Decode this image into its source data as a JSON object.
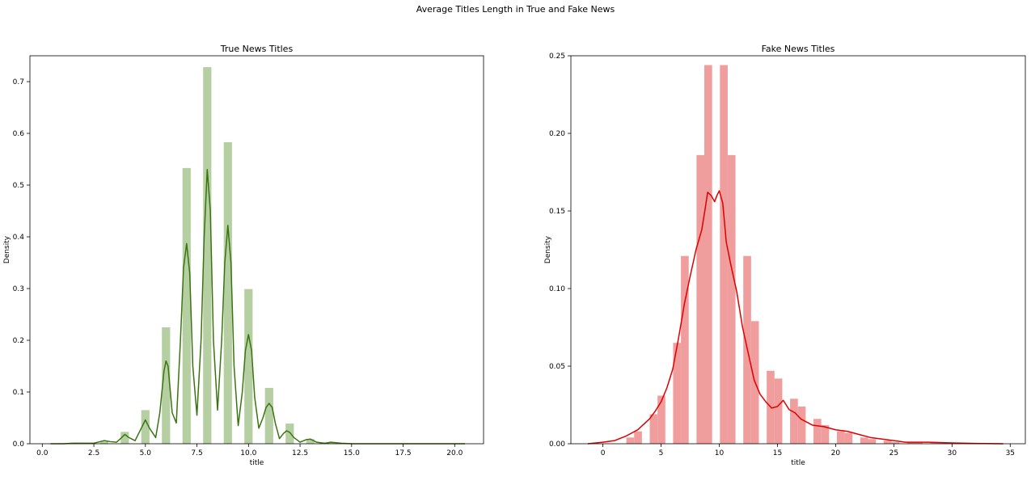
{
  "figure": {
    "suptitle": "Average Titles Length in True and Fake News"
  },
  "chart_data": [
    {
      "type": "bar",
      "title": "True News Titles",
      "xlabel": "title",
      "ylabel": "Density",
      "xlim": [
        -0.6,
        21.4
      ],
      "ylim": [
        0,
        0.75
      ],
      "xticks": [
        0.0,
        2.5,
        5.0,
        7.5,
        10.0,
        12.5,
        15.0,
        17.5,
        20.0
      ],
      "xtick_labels": [
        "0.0",
        "2.5",
        "5.0",
        "7.5",
        "10.0",
        "12.5",
        "15.0",
        "17.5",
        "20.0"
      ],
      "yticks": [
        0.0,
        0.1,
        0.2,
        0.3,
        0.4,
        0.5,
        0.6,
        0.7
      ],
      "ytick_labels": [
        "0.0",
        "0.1",
        "0.2",
        "0.3",
        "0.4",
        "0.5",
        "0.6",
        "0.7"
      ],
      "bar_color": "#b5cfa3",
      "kde_color": "#3a7410",
      "bars": [
        {
          "x": 3,
          "width": 0.4,
          "density": 0.004
        },
        {
          "x": 4,
          "width": 0.4,
          "density": 0.023
        },
        {
          "x": 5,
          "width": 0.4,
          "density": 0.065
        },
        {
          "x": 6,
          "width": 0.4,
          "density": 0.225
        },
        {
          "x": 7,
          "width": 0.4,
          "density": 0.533
        },
        {
          "x": 8,
          "width": 0.4,
          "density": 0.728
        },
        {
          "x": 9,
          "width": 0.4,
          "density": 0.583
        },
        {
          "x": 10,
          "width": 0.4,
          "density": 0.299
        },
        {
          "x": 11,
          "width": 0.4,
          "density": 0.108
        },
        {
          "x": 12,
          "width": 0.4,
          "density": 0.039
        },
        {
          "x": 13,
          "width": 0.4,
          "density": 0.009
        },
        {
          "x": 14,
          "width": 0.4,
          "density": 0.002
        }
      ],
      "kde": {
        "x": [
          0.4,
          1.0,
          1.5,
          2.0,
          2.5,
          2.8,
          3.0,
          3.3,
          3.6,
          3.8,
          4.0,
          4.2,
          4.5,
          4.8,
          5.0,
          5.2,
          5.5,
          5.7,
          5.9,
          6.0,
          6.1,
          6.3,
          6.5,
          6.7,
          6.85,
          7.0,
          7.15,
          7.3,
          7.5,
          7.7,
          7.85,
          8.0,
          8.15,
          8.3,
          8.5,
          8.7,
          8.85,
          9.0,
          9.15,
          9.3,
          9.5,
          9.7,
          9.85,
          10.0,
          10.15,
          10.3,
          10.5,
          10.7,
          10.85,
          11.0,
          11.15,
          11.3,
          11.5,
          11.7,
          11.85,
          12.0,
          12.2,
          12.5,
          12.8,
          13.0,
          13.3,
          13.7,
          14.0,
          14.5,
          15.0,
          16.0,
          18.0,
          20.5
        ],
        "y": [
          0.0,
          0.0,
          0.001,
          0.001,
          0.001,
          0.004,
          0.006,
          0.004,
          0.003,
          0.01,
          0.018,
          0.012,
          0.006,
          0.03,
          0.046,
          0.03,
          0.012,
          0.06,
          0.14,
          0.16,
          0.15,
          0.06,
          0.04,
          0.2,
          0.34,
          0.387,
          0.33,
          0.15,
          0.055,
          0.2,
          0.4,
          0.53,
          0.45,
          0.2,
          0.065,
          0.2,
          0.35,
          0.422,
          0.35,
          0.15,
          0.035,
          0.1,
          0.18,
          0.211,
          0.18,
          0.09,
          0.03,
          0.05,
          0.07,
          0.078,
          0.07,
          0.04,
          0.01,
          0.02,
          0.025,
          0.022,
          0.012,
          0.003,
          0.008,
          0.009,
          0.003,
          0.001,
          0.003,
          0.001,
          0.0,
          0.0,
          0.0,
          0.0
        ]
      }
    },
    {
      "type": "bar",
      "title": "Fake News Titles",
      "xlabel": "title",
      "ylabel": "Density",
      "xlim": [
        -2.75,
        36.3
      ],
      "ylim": [
        0,
        0.25
      ],
      "xticks": [
        0,
        5,
        10,
        15,
        20,
        25,
        30,
        35
      ],
      "xtick_labels": [
        "0",
        "5",
        "10",
        "15",
        "20",
        "25",
        "30",
        "35"
      ],
      "yticks": [
        0.0,
        0.05,
        0.1,
        0.15,
        0.2,
        0.25
      ],
      "ytick_labels": [
        "0.00",
        "0.05",
        "0.10",
        "0.15",
        "0.20",
        "0.25"
      ],
      "bar_color": "#f09d9d",
      "kde_color": "#e00000",
      "bars": [
        {
          "x": 2.35,
          "width": 0.67,
          "density": 0.004
        },
        {
          "x": 3.02,
          "width": 0.67,
          "density": 0.008
        },
        {
          "x": 4.36,
          "width": 0.67,
          "density": 0.019
        },
        {
          "x": 5.03,
          "width": 0.67,
          "density": 0.031
        },
        {
          "x": 6.37,
          "width": 0.67,
          "density": 0.065
        },
        {
          "x": 7.04,
          "width": 0.67,
          "density": 0.121
        },
        {
          "x": 8.38,
          "width": 0.67,
          "density": 0.186
        },
        {
          "x": 9.05,
          "width": 0.67,
          "density": 0.244
        },
        {
          "x": 10.39,
          "width": 0.67,
          "density": 0.244
        },
        {
          "x": 11.06,
          "width": 0.67,
          "density": 0.186
        },
        {
          "x": 12.4,
          "width": 0.67,
          "density": 0.121
        },
        {
          "x": 13.07,
          "width": 0.67,
          "density": 0.079
        },
        {
          "x": 14.41,
          "width": 0.67,
          "density": 0.047
        },
        {
          "x": 15.08,
          "width": 0.67,
          "density": 0.042
        },
        {
          "x": 16.42,
          "width": 0.67,
          "density": 0.029
        },
        {
          "x": 17.09,
          "width": 0.67,
          "density": 0.024
        },
        {
          "x": 18.43,
          "width": 0.67,
          "density": 0.016
        },
        {
          "x": 19.1,
          "width": 0.67,
          "density": 0.012
        },
        {
          "x": 20.44,
          "width": 0.67,
          "density": 0.008
        },
        {
          "x": 21.11,
          "width": 0.67,
          "density": 0.007
        },
        {
          "x": 22.45,
          "width": 0.67,
          "density": 0.004
        },
        {
          "x": 23.12,
          "width": 0.67,
          "density": 0.003
        },
        {
          "x": 24.46,
          "width": 0.67,
          "density": 0.002
        },
        {
          "x": 25.13,
          "width": 0.67,
          "density": 0.001
        },
        {
          "x": 26.47,
          "width": 0.67,
          "density": 0.001
        },
        {
          "x": 27.14,
          "width": 0.67,
          "density": 0.001
        },
        {
          "x": 28.48,
          "width": 0.67,
          "density": 0.0005
        },
        {
          "x": 29.15,
          "width": 0.67,
          "density": 0.0005
        }
      ],
      "kde": {
        "x": [
          -1.3,
          0,
          1,
          2,
          3,
          4,
          4.5,
          5,
          5.5,
          6,
          6.5,
          7,
          7.5,
          8,
          8.5,
          8.8,
          9,
          9.3,
          9.6,
          9.8,
          10,
          10.3,
          10.6,
          11,
          11.5,
          12,
          12.5,
          13,
          13.5,
          14,
          14.5,
          15,
          15.5,
          16,
          16.5,
          17,
          18,
          19,
          20,
          21,
          22,
          23,
          24,
          25,
          26,
          28,
          30,
          32,
          34.4
        ],
        "y": [
          0.0,
          0.001,
          0.002,
          0.005,
          0.009,
          0.016,
          0.021,
          0.027,
          0.036,
          0.048,
          0.068,
          0.09,
          0.108,
          0.125,
          0.138,
          0.152,
          0.162,
          0.16,
          0.156,
          0.16,
          0.163,
          0.155,
          0.13,
          0.115,
          0.098,
          0.075,
          0.058,
          0.041,
          0.032,
          0.027,
          0.023,
          0.024,
          0.028,
          0.022,
          0.02,
          0.016,
          0.012,
          0.011,
          0.009,
          0.008,
          0.006,
          0.004,
          0.003,
          0.002,
          0.001,
          0.001,
          0.0005,
          0.0002,
          0.0
        ]
      }
    }
  ]
}
